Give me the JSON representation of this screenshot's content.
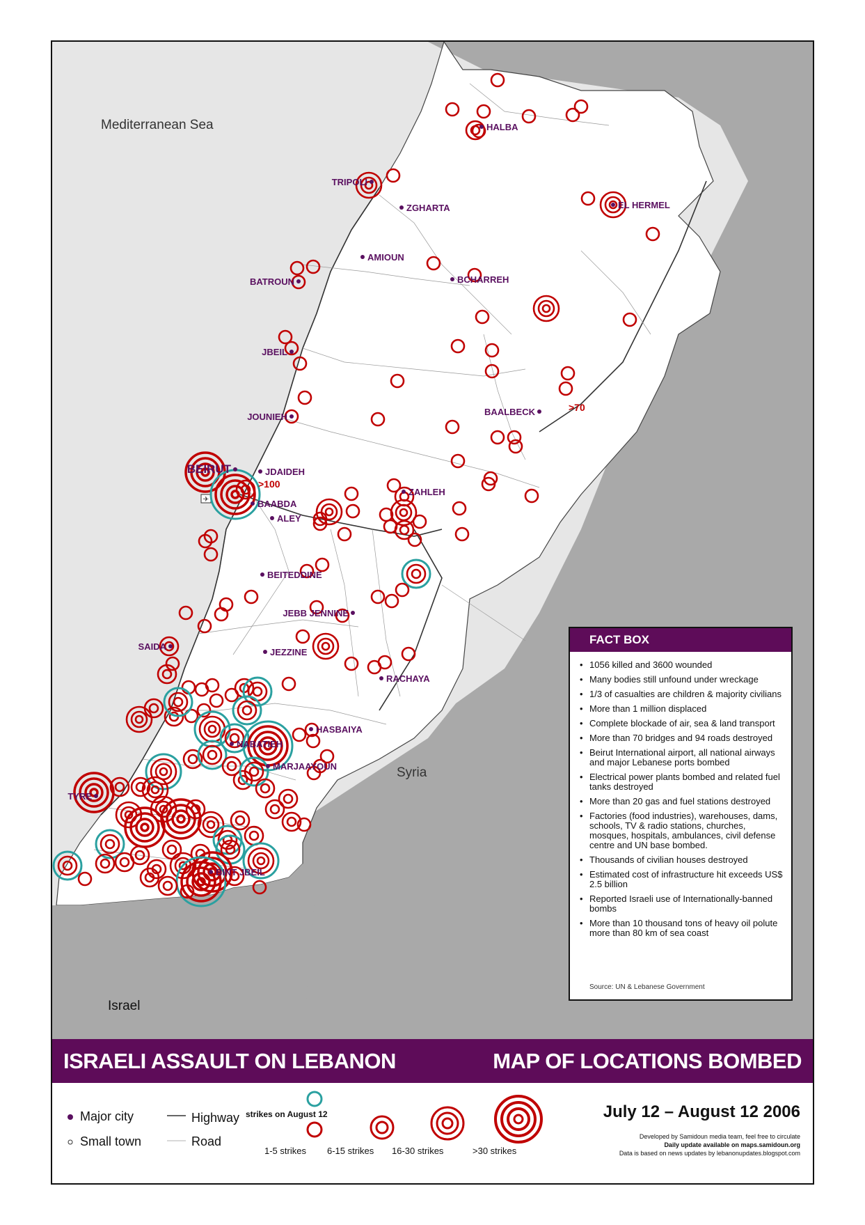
{
  "colors": {
    "sea": "#e6e6e6",
    "neighbors": "#a9a9a9",
    "lebanon": "#ffffff",
    "strike": "#c00000",
    "recent": "#2aa0a0",
    "city": "#5a1060",
    "banner": "#5e0c59"
  },
  "map": {
    "sea_label": "Mediterranean Sea",
    "syria_label": "Syria",
    "israel_label": "Israel",
    "cities": [
      {
        "name": "HALBA",
        "type": "major"
      },
      {
        "name": "TRIPOLI",
        "type": "major"
      },
      {
        "name": "ZGHARTA",
        "type": "major"
      },
      {
        "name": "EL HERMEL",
        "type": "major"
      },
      {
        "name": "AMIOUN",
        "type": "major"
      },
      {
        "name": "BCHARREH",
        "type": "major"
      },
      {
        "name": "BATROUN",
        "type": "major"
      },
      {
        "name": "JBEIL",
        "type": "major"
      },
      {
        "name": "JOUNIEH",
        "type": "major"
      },
      {
        "name": "BAALBECK",
        "type": "major"
      },
      {
        "name": "BEIRUT",
        "type": "major"
      },
      {
        "name": "JDAIDEH",
        "type": "major"
      },
      {
        "name": "BAABDA",
        "type": "major"
      },
      {
        "name": "ALEY",
        "type": "major"
      },
      {
        "name": "ZAHLEH",
        "type": "major"
      },
      {
        "name": "BEITEDDINE",
        "type": "major"
      },
      {
        "name": "JEBB JENNINE",
        "type": "major"
      },
      {
        "name": "SAIDA",
        "type": "major"
      },
      {
        "name": "JEZZINE",
        "type": "major"
      },
      {
        "name": "RACHAYA",
        "type": "major"
      },
      {
        "name": "HASBAIYA",
        "type": "major"
      },
      {
        "name": "NABATIEH",
        "type": "major"
      },
      {
        "name": "MARJAAYOUN",
        "type": "major"
      },
      {
        "name": "TYRE",
        "type": "major"
      },
      {
        "name": "BINT JBEIL",
        "type": "major"
      }
    ],
    "annotations": [
      ">70",
      ">100"
    ]
  },
  "factbox": {
    "title": "FACT BOX",
    "items": [
      "1056 killed and 3600 wounded",
      "Many bodies still unfound under wreckage",
      "1/3 of casualties are children & majority civilians",
      "More than 1 million displaced",
      "Complete blockade of air, sea & land transport",
      "More than 70 bridges and 94 roads destroyed",
      "Beirut International airport, all national airways and major Lebanese ports bombed",
      "Electrical power plants bombed and related fuel tanks destroyed",
      "More than 20 gas and fuel stations destroyed",
      "Factories (food industries), warehouses, dams, schools, TV & radio stations, churches, mosques, hospitals, ambulances, civil defense centre and UN base bombed.",
      "Thousands of civilian houses destroyed",
      "Estimated cost of infrastructure hit exceeds US$ 2.5 billion",
      "Reported Israeli use of Internationally-banned bombs",
      "More than 10 thousand tons of heavy oil polute more than 80 km of sea coast"
    ],
    "source": "Source: UN & Lebanese Government"
  },
  "banner": {
    "left": "ISRAELI ASSAULT ON LEBANON",
    "right": "MAP OF LOCATIONS BOMBED"
  },
  "legend": {
    "major_city": "Major city",
    "small_town": "Small town",
    "highway": "Highway",
    "road": "Road",
    "recent": "strikes on August 12",
    "sizes": [
      "1-5 strikes",
      "6-15 strikes",
      "16-30 strikes",
      ">30 strikes"
    ]
  },
  "date": "July 12 – August 12 2006",
  "credits": {
    "line1": "Developed by Samidoun media team, feel free to circulate",
    "line2": "Daily update available on maps.samidoun.org",
    "line3": "Data is based on news updates by lebanonupdates.blogspot.com"
  }
}
